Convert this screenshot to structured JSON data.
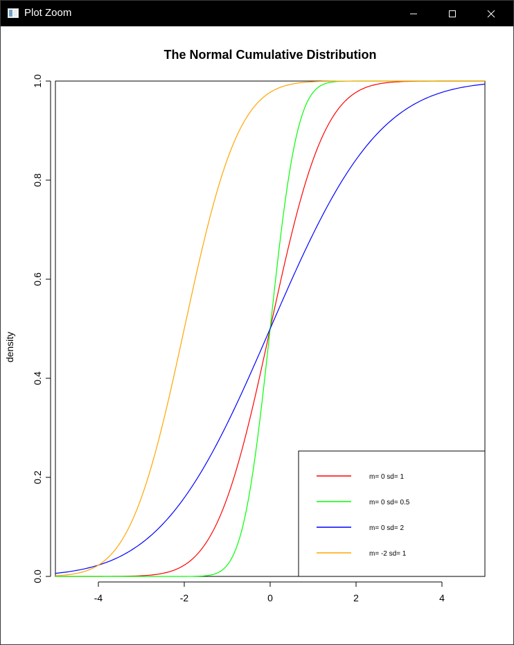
{
  "window": {
    "title": "Plot Zoom"
  },
  "chart_data": {
    "type": "line",
    "title": "The Normal Cumulative Distribution",
    "xlabel": "",
    "ylabel": "density",
    "xlim": [
      -5,
      5
    ],
    "ylim": [
      0,
      1
    ],
    "x_ticks": [
      -4,
      -2,
      0,
      2,
      4
    ],
    "y_ticks": [
      0.0,
      0.2,
      0.4,
      0.6,
      0.8,
      1.0
    ],
    "x_tick_labels": [
      "-4",
      "-2",
      "0",
      "2",
      "4"
    ],
    "y_tick_labels": [
      "0.0",
      "0.2",
      "0.4",
      "0.6",
      "0.8",
      "1.0"
    ],
    "grid": false,
    "legend_position": "bottom-right",
    "series": [
      {
        "name": "m= 0 sd= 1",
        "mean": 0,
        "sd": 1,
        "color": "#ff0000",
        "curve": "normal-cdf"
      },
      {
        "name": "m= 0 sd= 0.5",
        "mean": 0,
        "sd": 0.5,
        "color": "#00ff00",
        "curve": "normal-cdf"
      },
      {
        "name": "m= 0 sd= 2",
        "mean": 0,
        "sd": 2,
        "color": "#0000ff",
        "curve": "normal-cdf"
      },
      {
        "name": "m= -2 sd= 1",
        "mean": -2,
        "sd": 1,
        "color": "#ffa500",
        "curve": "normal-cdf"
      }
    ]
  }
}
